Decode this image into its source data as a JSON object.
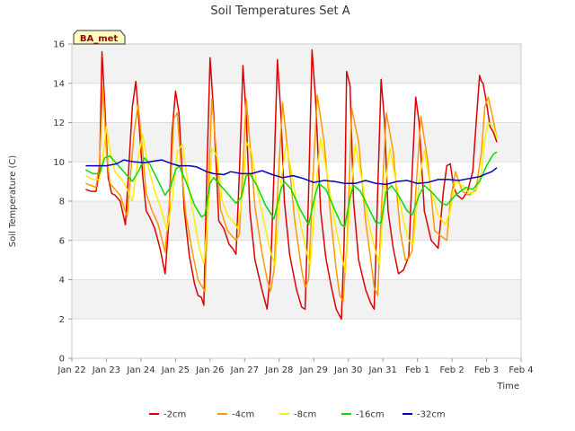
{
  "chart_data": {
    "type": "line",
    "title": "Soil Temperatures Set A",
    "xlabel": "Time",
    "ylabel": "Soil Temperature (C)",
    "station_label": "BA_met",
    "ylim": [
      0,
      16
    ],
    "yticks": [
      0,
      2,
      4,
      6,
      8,
      10,
      12,
      14,
      16
    ],
    "xlim": [
      0,
      13
    ],
    "xticks": [
      {
        "pos": 0,
        "label": "Jan 22"
      },
      {
        "pos": 1,
        "label": "Jan 23"
      },
      {
        "pos": 2,
        "label": "Jan 24"
      },
      {
        "pos": 3,
        "label": "Jan 25"
      },
      {
        "pos": 4,
        "label": "Jan 26"
      },
      {
        "pos": 5,
        "label": "Jan 27"
      },
      {
        "pos": 6,
        "label": "Jan 28"
      },
      {
        "pos": 7,
        "label": "Jan 29"
      },
      {
        "pos": 8,
        "label": "Jan 30"
      },
      {
        "pos": 9,
        "label": "Jan 31"
      },
      {
        "pos": 10,
        "label": "Feb 1"
      },
      {
        "pos": 11,
        "label": "Feb 2"
      },
      {
        "pos": 12,
        "label": "Feb 3"
      },
      {
        "pos": 13,
        "label": "Feb 4"
      }
    ],
    "grid": true,
    "legend_position": "bottom",
    "series": [
      {
        "name": "-2cm",
        "color": "#dd0000",
        "x": [
          0.4,
          0.55,
          0.7,
          0.8,
          0.87,
          0.95,
          1.05,
          1.15,
          1.25,
          1.4,
          1.55,
          1.75,
          1.85,
          1.95,
          2.05,
          2.15,
          2.25,
          2.4,
          2.55,
          2.7,
          2.8,
          2.9,
          3.0,
          3.1,
          3.25,
          3.4,
          3.55,
          3.65,
          3.75,
          3.82,
          3.9,
          4.0,
          4.1,
          4.25,
          4.4,
          4.55,
          4.65,
          4.75,
          4.85,
          4.95,
          5.05,
          5.15,
          5.3,
          5.5,
          5.65,
          5.75,
          5.85,
          5.95,
          6.05,
          6.15,
          6.3,
          6.5,
          6.65,
          6.75,
          6.85,
          6.95,
          7.05,
          7.2,
          7.35,
          7.5,
          7.65,
          7.8,
          7.88,
          7.95,
          8.05,
          8.15,
          8.3,
          8.5,
          8.65,
          8.75,
          8.85,
          8.95,
          9.05,
          9.15,
          9.3,
          9.45,
          9.6,
          9.75,
          9.85,
          9.95,
          10.05,
          10.2,
          10.4,
          10.6,
          10.75,
          10.85,
          10.95,
          11.05,
          11.15,
          11.3,
          11.45,
          11.6,
          11.7,
          11.8,
          11.85,
          11.9,
          12.0,
          12.1,
          12.2,
          12.3
        ],
        "values": [
          8.6,
          8.5,
          8.5,
          9.6,
          15.6,
          13.0,
          9.2,
          8.4,
          8.3,
          8.0,
          6.8,
          12.8,
          14.1,
          11.8,
          9.3,
          7.5,
          7.2,
          6.6,
          5.6,
          4.3,
          6.8,
          11.5,
          13.6,
          12.5,
          7.6,
          5.2,
          3.8,
          3.2,
          3.1,
          2.7,
          9.0,
          15.3,
          12.6,
          7.0,
          6.6,
          5.8,
          5.6,
          5.3,
          9.5,
          14.9,
          12.2,
          7.5,
          5.0,
          3.5,
          2.5,
          4.5,
          9.5,
          15.2,
          12.4,
          8.0,
          5.3,
          3.5,
          2.6,
          2.5,
          8.5,
          15.7,
          13.2,
          7.5,
          5.1,
          3.7,
          2.5,
          2.0,
          6.0,
          14.6,
          13.9,
          8.0,
          5.0,
          3.5,
          2.8,
          2.5,
          8.5,
          14.2,
          12.0,
          7.5,
          5.6,
          4.3,
          4.5,
          5.2,
          9.5,
          13.3,
          12.0,
          7.5,
          6.0,
          5.6,
          8.5,
          9.8,
          9.9,
          8.7,
          8.3,
          8.1,
          8.5,
          9.5,
          12.0,
          14.4,
          14.1,
          14.0,
          13.0,
          11.8,
          11.5,
          11.0
        ]
      },
      {
        "name": "-4cm",
        "color": "#ff9900",
        "x": [
          0.4,
          0.55,
          0.7,
          0.8,
          0.9,
          1.0,
          1.1,
          1.25,
          1.4,
          1.6,
          1.8,
          1.92,
          2.05,
          2.15,
          2.3,
          2.5,
          2.7,
          2.85,
          2.95,
          3.05,
          3.15,
          3.3,
          3.5,
          3.65,
          3.75,
          3.85,
          3.95,
          4.05,
          4.15,
          4.3,
          4.5,
          4.65,
          4.75,
          4.85,
          4.95,
          5.05,
          5.15,
          5.3,
          5.5,
          5.65,
          5.75,
          5.85,
          5.97,
          6.1,
          6.25,
          6.45,
          6.65,
          6.75,
          6.85,
          6.97,
          7.1,
          7.3,
          7.5,
          7.65,
          7.75,
          7.85,
          7.97,
          8.1,
          8.3,
          8.5,
          8.65,
          8.75,
          8.85,
          8.97,
          9.1,
          9.3,
          9.5,
          9.65,
          9.75,
          9.85,
          9.97,
          10.1,
          10.3,
          10.5,
          10.7,
          10.85,
          10.95,
          11.1,
          11.3,
          11.5,
          11.7,
          11.85,
          11.95,
          12.05,
          12.15,
          12.3
        ],
        "values": [
          8.9,
          8.8,
          8.7,
          10.0,
          13.8,
          10.5,
          8.9,
          8.6,
          8.3,
          7.2,
          11.5,
          12.9,
          10.5,
          8.4,
          7.6,
          6.8,
          5.4,
          8.5,
          12.2,
          12.5,
          10.0,
          7.3,
          5.3,
          4.0,
          3.7,
          3.4,
          8.5,
          13.2,
          11.2,
          7.6,
          6.5,
          6.2,
          6.0,
          6.3,
          9.8,
          13.2,
          11.0,
          7.7,
          5.4,
          4.0,
          3.4,
          4.5,
          9.0,
          13.0,
          10.5,
          7.0,
          4.5,
          3.6,
          4.0,
          9.0,
          13.4,
          11.0,
          7.0,
          4.5,
          3.2,
          2.9,
          6.0,
          12.7,
          11.0,
          7.0,
          5.0,
          3.6,
          3.2,
          8.0,
          12.5,
          10.5,
          6.5,
          5.0,
          5.1,
          5.5,
          9.0,
          12.3,
          10.0,
          6.5,
          6.2,
          6.0,
          8.0,
          9.5,
          8.5,
          8.3,
          8.6,
          10.5,
          12.8,
          13.3,
          12.5,
          11.2
        ]
      },
      {
        "name": "-8cm",
        "color": "#ffee00",
        "x": [
          0.4,
          0.6,
          0.8,
          0.9,
          1.0,
          1.1,
          1.25,
          1.4,
          1.55,
          1.75,
          1.92,
          2.05,
          2.2,
          2.4,
          2.6,
          2.75,
          2.9,
          3.05,
          3.2,
          3.35,
          3.55,
          3.7,
          3.82,
          3.95,
          4.05,
          4.2,
          4.35,
          4.5,
          4.65,
          4.8,
          4.95,
          5.05,
          5.2,
          5.4,
          5.6,
          5.75,
          5.88,
          6.05,
          6.2,
          6.4,
          6.6,
          6.78,
          6.9,
          7.05,
          7.2,
          7.4,
          7.6,
          7.8,
          7.92,
          8.05,
          8.2,
          8.4,
          8.6,
          8.78,
          8.9,
          9.05,
          9.2,
          9.4,
          9.6,
          9.75,
          9.88,
          10.05,
          10.2,
          10.4,
          10.6,
          10.8,
          10.95,
          11.1,
          11.3,
          11.5,
          11.7,
          11.85,
          11.95,
          12.05,
          12.2,
          12.3
        ],
        "values": [
          9.3,
          9.1,
          9.1,
          10.3,
          11.8,
          10.6,
          9.5,
          9.2,
          8.8,
          8.0,
          10.2,
          11.4,
          9.8,
          8.5,
          7.5,
          6.5,
          8.0,
          10.5,
          10.9,
          9.0,
          7.0,
          5.5,
          4.8,
          7.5,
          10.7,
          10.3,
          8.0,
          7.3,
          7.0,
          6.6,
          8.5,
          11.0,
          10.5,
          8.3,
          6.6,
          5.4,
          4.7,
          9.0,
          10.9,
          9.0,
          7.0,
          5.5,
          4.7,
          8.5,
          11.2,
          9.2,
          7.0,
          5.2,
          4.4,
          8.0,
          10.9,
          9.0,
          6.8,
          5.5,
          4.8,
          8.5,
          10.7,
          8.8,
          7.0,
          6.0,
          5.8,
          9.0,
          10.6,
          8.5,
          7.3,
          6.8,
          7.5,
          9.0,
          8.8,
          8.4,
          8.5,
          9.5,
          11.2,
          12.0,
          11.8,
          11.2
        ]
      },
      {
        "name": "-16cm",
        "color": "#00dd00",
        "x": [
          0.4,
          0.6,
          0.8,
          0.95,
          1.1,
          1.3,
          1.55,
          1.75,
          1.95,
          2.1,
          2.25,
          2.45,
          2.7,
          2.85,
          3.0,
          3.1,
          3.3,
          3.55,
          3.75,
          3.85,
          4.0,
          4.1,
          4.3,
          4.55,
          4.75,
          4.9,
          5.05,
          5.15,
          5.35,
          5.6,
          5.85,
          6.05,
          6.15,
          6.35,
          6.6,
          6.85,
          7.05,
          7.15,
          7.35,
          7.6,
          7.8,
          7.9,
          8.05,
          8.15,
          8.35,
          8.6,
          8.8,
          8.95,
          9.1,
          9.25,
          9.45,
          9.7,
          9.85,
          10.05,
          10.2,
          10.45,
          10.7,
          10.85,
          11.1,
          11.4,
          11.6,
          11.8,
          12.0,
          12.2,
          12.3
        ],
        "values": [
          9.6,
          9.4,
          9.4,
          10.2,
          10.3,
          9.9,
          9.4,
          9.0,
          9.6,
          10.2,
          9.9,
          9.2,
          8.3,
          8.7,
          9.6,
          9.8,
          9.0,
          7.8,
          7.2,
          7.3,
          8.9,
          9.2,
          8.8,
          8.3,
          7.9,
          8.2,
          9.3,
          9.4,
          8.8,
          7.8,
          7.1,
          8.6,
          9.0,
          8.6,
          7.6,
          6.8,
          8.4,
          8.9,
          8.6,
          7.6,
          6.8,
          6.7,
          8.2,
          8.8,
          8.5,
          7.6,
          6.9,
          6.9,
          8.5,
          8.8,
          8.3,
          7.5,
          7.3,
          8.3,
          8.8,
          8.4,
          7.9,
          7.8,
          8.3,
          8.7,
          8.6,
          9.0,
          9.8,
          10.4,
          10.5
        ]
      },
      {
        "name": "-32cm",
        "color": "#0000bb",
        "x": [
          0.4,
          0.7,
          1.0,
          1.3,
          1.5,
          1.8,
          2.1,
          2.4,
          2.6,
          2.9,
          3.1,
          3.4,
          3.6,
          3.9,
          4.1,
          4.4,
          4.6,
          4.9,
          5.2,
          5.5,
          5.8,
          6.1,
          6.4,
          6.7,
          7.0,
          7.3,
          7.6,
          7.9,
          8.2,
          8.5,
          8.8,
          9.1,
          9.4,
          9.7,
          10.0,
          10.3,
          10.6,
          10.9,
          11.2,
          11.5,
          11.8,
          12.0,
          12.15,
          12.3
        ],
        "values": [
          9.8,
          9.8,
          9.8,
          9.9,
          10.1,
          10.0,
          9.95,
          10.05,
          10.1,
          9.9,
          9.8,
          9.8,
          9.75,
          9.5,
          9.4,
          9.35,
          9.5,
          9.4,
          9.4,
          9.55,
          9.35,
          9.2,
          9.3,
          9.15,
          8.95,
          9.05,
          9.0,
          8.9,
          8.9,
          9.05,
          8.9,
          8.85,
          9.0,
          9.05,
          8.9,
          8.95,
          9.1,
          9.1,
          9.05,
          9.15,
          9.25,
          9.4,
          9.5,
          9.7
        ]
      }
    ]
  }
}
